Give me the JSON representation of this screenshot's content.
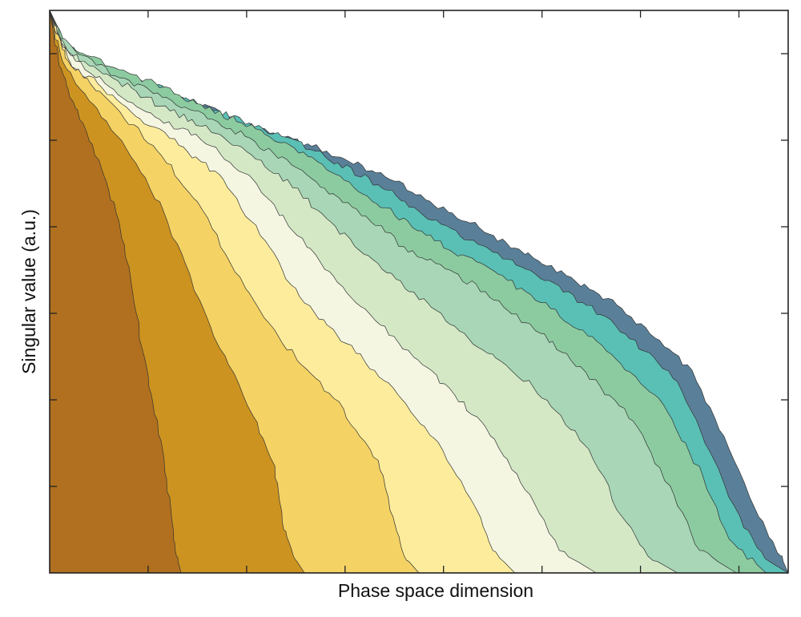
{
  "chart_data": {
    "type": "area",
    "title": "",
    "xlabel": "Phase space dimension",
    "ylabel": "Singular value (a.u.)",
    "xlim": [
      0,
      1
    ],
    "ylim": [
      0,
      1
    ],
    "x_tick_labels": [],
    "y_tick_labels": [],
    "grid": false,
    "legend": "none",
    "x_ticks": [
      0.1333,
      0.2667,
      0.4,
      0.5333,
      0.6667,
      0.8,
      0.9333
    ],
    "y_ticks": [
      0.1538,
      0.3077,
      0.4615,
      0.6154,
      0.7692,
      0.9231
    ],
    "series": [
      {
        "color": "#b07020",
        "points": [
          [
            0.0,
            1.0
          ],
          [
            0.004,
            0.97
          ],
          [
            0.012,
            0.91
          ],
          [
            0.025,
            0.86
          ],
          [
            0.045,
            0.8
          ],
          [
            0.07,
            0.72
          ],
          [
            0.09,
            0.64
          ],
          [
            0.11,
            0.52
          ],
          [
            0.125,
            0.4
          ],
          [
            0.14,
            0.3
          ],
          [
            0.155,
            0.2
          ],
          [
            0.165,
            0.1
          ],
          [
            0.17,
            0.04
          ],
          [
            0.178,
            0.0
          ]
        ]
      },
      {
        "color": "#cc9320",
        "points": [
          [
            0.0,
            1.0
          ],
          [
            0.005,
            0.97
          ],
          [
            0.015,
            0.92
          ],
          [
            0.035,
            0.87
          ],
          [
            0.07,
            0.81
          ],
          [
            0.11,
            0.74
          ],
          [
            0.155,
            0.64
          ],
          [
            0.19,
            0.53
          ],
          [
            0.23,
            0.4
          ],
          [
            0.275,
            0.28
          ],
          [
            0.305,
            0.19
          ],
          [
            0.315,
            0.09
          ],
          [
            0.33,
            0.03
          ],
          [
            0.345,
            0.0
          ]
        ]
      },
      {
        "color": "#f4d264",
        "points": [
          [
            0.0,
            1.0
          ],
          [
            0.008,
            0.96
          ],
          [
            0.025,
            0.91
          ],
          [
            0.055,
            0.87
          ],
          [
            0.095,
            0.82
          ],
          [
            0.14,
            0.76
          ],
          [
            0.2,
            0.66
          ],
          [
            0.245,
            0.55
          ],
          [
            0.31,
            0.42
          ],
          [
            0.385,
            0.31
          ],
          [
            0.445,
            0.2
          ],
          [
            0.465,
            0.1
          ],
          [
            0.48,
            0.03
          ],
          [
            0.5,
            0.0
          ]
        ]
      },
      {
        "color": "#fcec9c",
        "points": [
          [
            0.0,
            1.0
          ],
          [
            0.01,
            0.96
          ],
          [
            0.03,
            0.9
          ],
          [
            0.065,
            0.87
          ],
          [
            0.11,
            0.82
          ],
          [
            0.175,
            0.76
          ],
          [
            0.235,
            0.7
          ],
          [
            0.285,
            0.6
          ],
          [
            0.345,
            0.48
          ],
          [
            0.44,
            0.36
          ],
          [
            0.52,
            0.24
          ],
          [
            0.575,
            0.12
          ],
          [
            0.6,
            0.04
          ],
          [
            0.63,
            0.0
          ]
        ]
      },
      {
        "color": "#f4f6e2",
        "points": [
          [
            0.0,
            1.0
          ],
          [
            0.012,
            0.95
          ],
          [
            0.035,
            0.91
          ],
          [
            0.075,
            0.87
          ],
          [
            0.13,
            0.82
          ],
          [
            0.205,
            0.77
          ],
          [
            0.275,
            0.7
          ],
          [
            0.335,
            0.6
          ],
          [
            0.415,
            0.48
          ],
          [
            0.505,
            0.37
          ],
          [
            0.59,
            0.26
          ],
          [
            0.65,
            0.14
          ],
          [
            0.69,
            0.04
          ],
          [
            0.74,
            0.0
          ]
        ]
      },
      {
        "color": "#d4e8c6",
        "points": [
          [
            0.0,
            1.0
          ],
          [
            0.014,
            0.95
          ],
          [
            0.04,
            0.91
          ],
          [
            0.085,
            0.88
          ],
          [
            0.15,
            0.83
          ],
          [
            0.23,
            0.78
          ],
          [
            0.31,
            0.71
          ],
          [
            0.375,
            0.63
          ],
          [
            0.45,
            0.54
          ],
          [
            0.555,
            0.43
          ],
          [
            0.655,
            0.33
          ],
          [
            0.73,
            0.22
          ],
          [
            0.775,
            0.1
          ],
          [
            0.81,
            0.03
          ],
          [
            0.85,
            0.0
          ]
        ]
      },
      {
        "color": "#a8d6b6",
        "points": [
          [
            0.0,
            1.0
          ],
          [
            0.016,
            0.95
          ],
          [
            0.045,
            0.92
          ],
          [
            0.095,
            0.88
          ],
          [
            0.165,
            0.84
          ],
          [
            0.245,
            0.79
          ],
          [
            0.335,
            0.72
          ],
          [
            0.41,
            0.65
          ],
          [
            0.48,
            0.58
          ],
          [
            0.59,
            0.5
          ],
          [
            0.7,
            0.39
          ],
          [
            0.79,
            0.27
          ],
          [
            0.845,
            0.14
          ],
          [
            0.88,
            0.04
          ],
          [
            0.93,
            0.0
          ]
        ]
      },
      {
        "color": "#8ccba0",
        "points": [
          [
            0.0,
            1.0
          ],
          [
            0.018,
            0.95
          ],
          [
            0.05,
            0.92
          ],
          [
            0.105,
            0.89
          ],
          [
            0.175,
            0.85
          ],
          [
            0.26,
            0.8
          ],
          [
            0.35,
            0.74
          ],
          [
            0.43,
            0.67
          ],
          [
            0.51,
            0.6
          ],
          [
            0.62,
            0.52
          ],
          [
            0.735,
            0.42
          ],
          [
            0.825,
            0.31
          ],
          [
            0.885,
            0.17
          ],
          [
            0.92,
            0.06
          ],
          [
            0.97,
            0.0
          ]
        ]
      },
      {
        "color": "#5abfb5",
        "points": [
          [
            0.0,
            1.0
          ],
          [
            0.02,
            0.94
          ],
          [
            0.055,
            0.91
          ],
          [
            0.115,
            0.88
          ],
          [
            0.19,
            0.84
          ],
          [
            0.27,
            0.8
          ],
          [
            0.36,
            0.75
          ],
          [
            0.445,
            0.69
          ],
          [
            0.53,
            0.62
          ],
          [
            0.645,
            0.54
          ],
          [
            0.76,
            0.45
          ],
          [
            0.85,
            0.34
          ],
          [
            0.9,
            0.2
          ],
          [
            0.94,
            0.08
          ],
          [
            0.975,
            0.02
          ],
          [
            1.0,
            0.0
          ]
        ]
      },
      {
        "color": "#5a8099",
        "points": [
          [
            0.0,
            1.0
          ],
          [
            0.022,
            0.94
          ],
          [
            0.06,
            0.9
          ],
          [
            0.13,
            0.87
          ],
          [
            0.205,
            0.83
          ],
          [
            0.285,
            0.79
          ],
          [
            0.375,
            0.75
          ],
          [
            0.46,
            0.7
          ],
          [
            0.545,
            0.64
          ],
          [
            0.655,
            0.56
          ],
          [
            0.775,
            0.47
          ],
          [
            0.87,
            0.36
          ],
          [
            0.92,
            0.22
          ],
          [
            0.96,
            0.1
          ],
          [
            0.99,
            0.03
          ],
          [
            1.0,
            0.0
          ]
        ]
      }
    ]
  }
}
